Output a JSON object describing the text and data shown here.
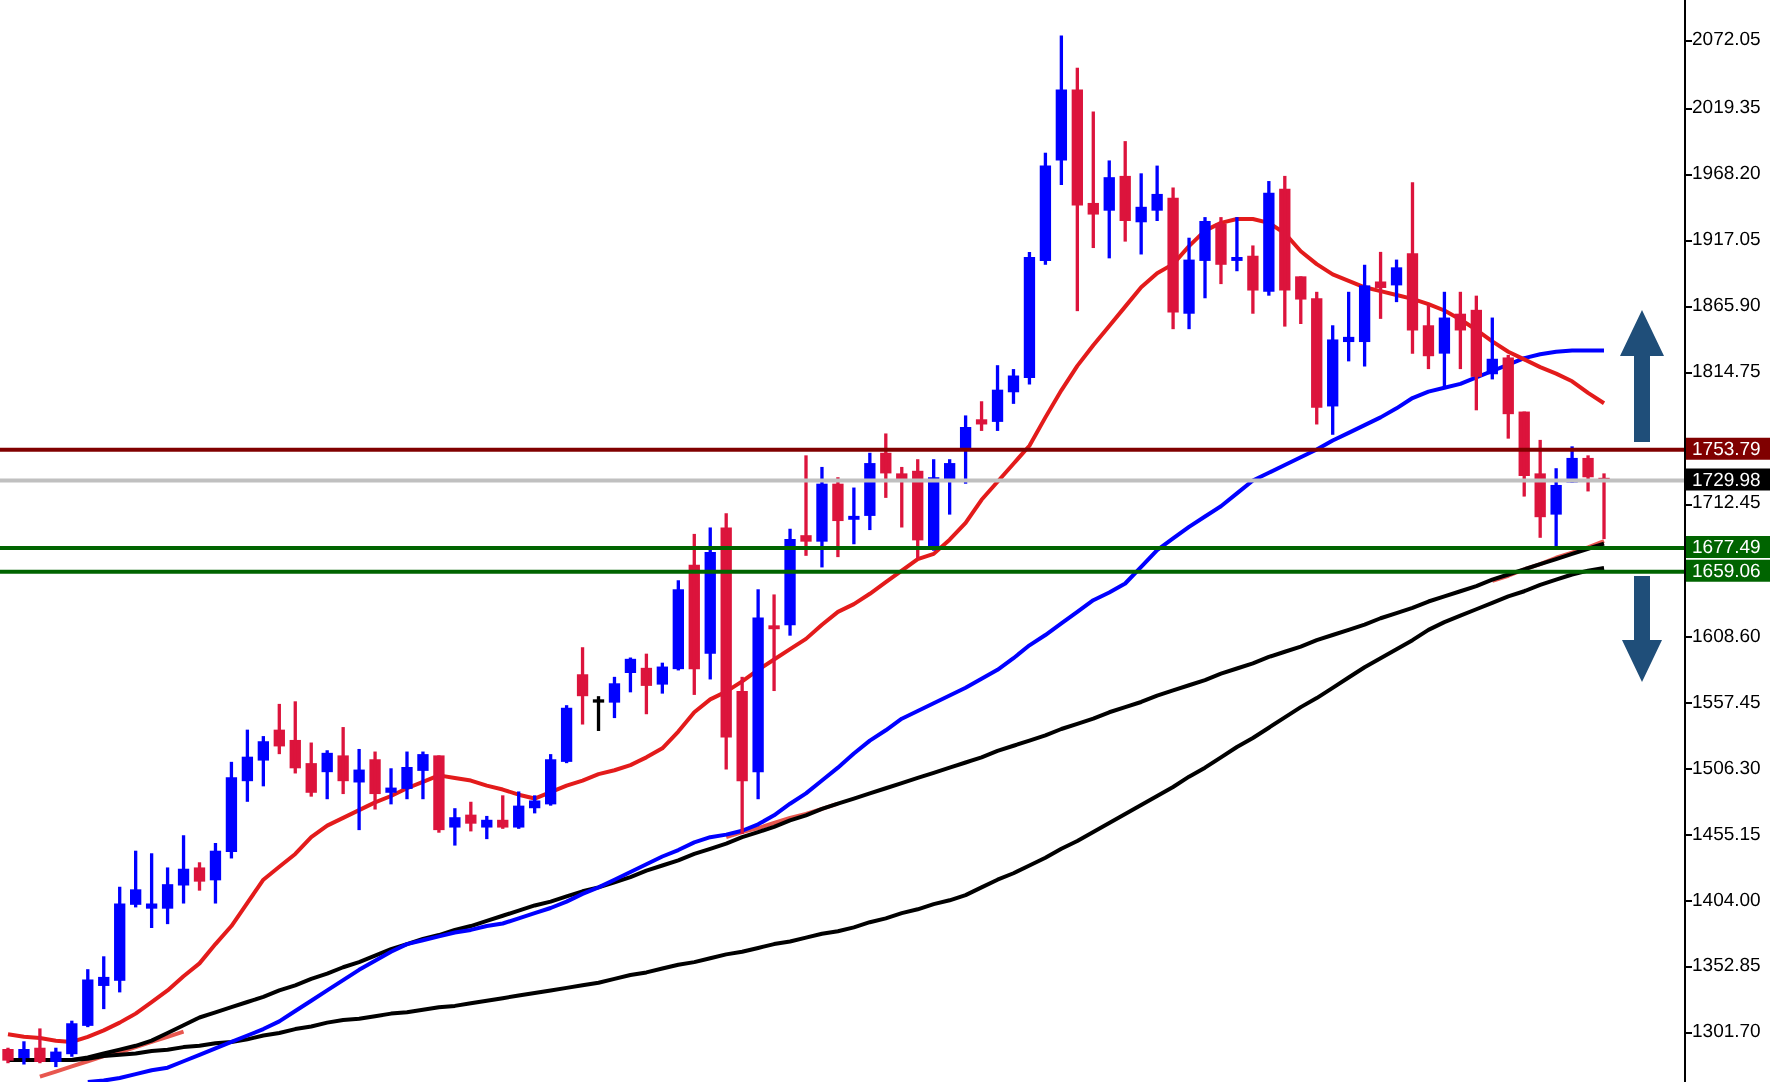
{
  "chart_data": {
    "type": "candlestick",
    "categories": [
      null,
      null,
      null,
      null,
      null,
      null,
      null,
      null,
      null,
      null,
      null,
      null,
      null,
      null,
      null,
      null,
      null,
      null,
      null,
      null,
      null,
      null,
      null,
      null,
      null,
      null,
      null,
      null,
      null,
      null,
      null,
      null,
      null,
      null,
      null,
      null,
      null,
      null,
      null,
      null,
      null,
      null,
      null,
      null,
      null,
      null,
      null,
      null,
      null,
      null,
      null,
      null,
      null,
      null,
      null,
      null,
      null,
      null,
      null,
      null,
      null,
      null,
      null,
      null,
      null,
      null,
      null,
      null,
      null,
      null,
      null,
      null,
      null,
      null,
      null,
      null,
      null,
      null,
      null,
      null,
      null,
      null,
      null,
      null,
      null,
      null,
      null,
      null,
      null,
      null,
      null,
      null,
      null,
      null,
      null,
      null,
      null,
      null,
      null,
      null,
      null
    ],
    "ohlc": [
      [
        1288,
        1289,
        1278,
        1280
      ],
      [
        1282,
        1294,
        1277,
        1288
      ],
      [
        1289,
        1304,
        1278,
        1279
      ],
      [
        1279,
        1289,
        1275,
        1286
      ],
      [
        1285,
        1310,
        1283,
        1308
      ],
      [
        1307,
        1350,
        1306,
        1342
      ],
      [
        1338,
        1360,
        1320,
        1344
      ],
      [
        1342,
        1414,
        1333,
        1401
      ],
      [
        1401,
        1442,
        1399,
        1412
      ],
      [
        1398,
        1440,
        1383,
        1401
      ],
      [
        1398,
        1429,
        1386,
        1416
      ],
      [
        1416,
        1454,
        1402,
        1428
      ],
      [
        1429,
        1433,
        1412,
        1419
      ],
      [
        1420,
        1448,
        1402,
        1442
      ],
      [
        1442,
        1511,
        1437,
        1499
      ],
      [
        1497,
        1536,
        1481,
        1515
      ],
      [
        1513,
        1531,
        1493,
        1527
      ],
      [
        1536,
        1556,
        1518,
        1524
      ],
      [
        1528,
        1558,
        1503,
        1507
      ],
      [
        1510,
        1526,
        1485,
        1488
      ],
      [
        1504,
        1520,
        1483,
        1518
      ],
      [
        1516,
        1538,
        1487,
        1497
      ],
      [
        1496,
        1521,
        1459,
        1505
      ],
      [
        1513,
        1519,
        1475,
        1487
      ],
      [
        1488,
        1506,
        1479,
        1491
      ],
      [
        1491,
        1519,
        1483,
        1507
      ],
      [
        1505,
        1519,
        1483,
        1517
      ],
      [
        1516,
        1516,
        1457,
        1459
      ],
      [
        1461,
        1475,
        1447,
        1468
      ],
      [
        1470,
        1480,
        1458,
        1464
      ],
      [
        1461,
        1469,
        1452,
        1466
      ],
      [
        1466,
        1485,
        1460,
        1461
      ],
      [
        1461,
        1488,
        1460,
        1477
      ],
      [
        1476,
        1485,
        1472,
        1481
      ],
      [
        1479,
        1517,
        1478,
        1513
      ],
      [
        1512,
        1555,
        1511,
        1553
      ],
      [
        1579,
        1600,
        1541,
        1563
      ],
      [
        1559,
        1562,
        1536,
        1558
      ],
      [
        1558,
        1577,
        1546,
        1572
      ],
      [
        1581,
        1592,
        1566,
        1591
      ],
      [
        1584,
        1595,
        1549,
        1571
      ],
      [
        1572,
        1588,
        1565,
        1585
      ],
      [
        1584,
        1652,
        1583,
        1645
      ],
      [
        1664,
        1688,
        1564,
        1584
      ],
      [
        1596,
        1693,
        1576,
        1674
      ],
      [
        1693,
        1704,
        1506,
        1531
      ],
      [
        1566,
        1577,
        1456,
        1497
      ],
      [
        1504,
        1645,
        1483,
        1623
      ],
      [
        1617,
        1641,
        1567,
        1615
      ],
      [
        1618,
        1692,
        1610,
        1684
      ],
      [
        1687,
        1749,
        1672,
        1683
      ],
      [
        1683,
        1740,
        1663,
        1727
      ],
      [
        1727,
        1732,
        1671,
        1699
      ],
      [
        1700,
        1724,
        1681,
        1702
      ],
      [
        1703,
        1751,
        1692,
        1743
      ],
      [
        1751,
        1766,
        1717,
        1736
      ],
      [
        1735,
        1740,
        1694,
        1731
      ],
      [
        1737,
        1746,
        1670,
        1684
      ],
      [
        1679,
        1746,
        1676,
        1732
      ],
      [
        1730,
        1746,
        1704,
        1743
      ],
      [
        1755,
        1780,
        1728,
        1771
      ],
      [
        1777,
        1791,
        1769,
        1774
      ],
      [
        1776,
        1819,
        1769,
        1800
      ],
      [
        1799,
        1816,
        1790,
        1811
      ],
      [
        1810,
        1907,
        1805,
        1903
      ],
      [
        1901,
        1984,
        1898,
        1974
      ],
      [
        1979,
        2075,
        1960,
        2033
      ],
      [
        2033,
        2050,
        1862,
        1944
      ],
      [
        1945,
        2016,
        1911,
        1937
      ],
      [
        1940,
        1978,
        1903,
        1965
      ],
      [
        1966,
        1993,
        1916,
        1932
      ],
      [
        1931,
        1968,
        1906,
        1942
      ],
      [
        1940,
        1974,
        1932,
        1952
      ],
      [
        1949,
        1957,
        1848,
        1861
      ],
      [
        1860,
        1918,
        1848,
        1901
      ],
      [
        1901,
        1934,
        1872,
        1931
      ],
      [
        1929,
        1934,
        1883,
        1898
      ],
      [
        1901,
        1934,
        1893,
        1903
      ],
      [
        1904,
        1912,
        1860,
        1878
      ],
      [
        1877,
        1962,
        1874,
        1953
      ],
      [
        1956,
        1966,
        1850,
        1878
      ],
      [
        1888,
        1888,
        1852,
        1871
      ],
      [
        1871,
        1876,
        1774,
        1787
      ],
      [
        1788,
        1850,
        1766,
        1839
      ],
      [
        1838,
        1876,
        1823,
        1841
      ],
      [
        1838,
        1897,
        1819,
        1881
      ],
      [
        1884,
        1907,
        1856,
        1880
      ],
      [
        1882,
        1901,
        1869,
        1895
      ],
      [
        1906,
        1961,
        1829,
        1847
      ],
      [
        1850,
        1866,
        1817,
        1827
      ],
      [
        1829,
        1876,
        1802,
        1856
      ],
      [
        1859,
        1876,
        1817,
        1847
      ],
      [
        1862,
        1873,
        1785,
        1811
      ],
      [
        1813,
        1856,
        1809,
        1824
      ],
      [
        1825,
        1827,
        1763,
        1782
      ],
      [
        1783,
        1783,
        1718,
        1734
      ],
      [
        1735,
        1761,
        1686,
        1702
      ],
      [
        1704,
        1739,
        1677,
        1726
      ],
      [
        1729,
        1756,
        1729,
        1747
      ],
      [
        1747,
        1749,
        1722,
        1733
      ],
      [
        1731,
        1735,
        1685,
        1730
      ]
    ],
    "colors": [
      "#dc143c",
      "#0000ff",
      "#dc143c",
      "#0000ff",
      "#0000ff",
      "#0000ff",
      "#0000ff",
      "#0000ff",
      "#0000ff",
      "#0000ff",
      "#0000ff",
      "#0000ff",
      "#dc143c",
      "#0000ff",
      "#0000ff",
      "#0000ff",
      "#0000ff",
      "#dc143c",
      "#dc143c",
      "#dc143c",
      "#0000ff",
      "#dc143c",
      "#0000ff",
      "#dc143c",
      "#0000ff",
      "#0000ff",
      "#0000ff",
      "#dc143c",
      "#0000ff",
      "#dc143c",
      "#0000ff",
      "#dc143c",
      "#0000ff",
      "#0000ff",
      "#0000ff",
      "#0000ff",
      "#dc143c",
      "#000000",
      "#0000ff",
      "#0000ff",
      "#dc143c",
      "#0000ff",
      "#0000ff",
      "#dc143c",
      "#0000ff",
      "#dc143c",
      "#dc143c",
      "#0000ff",
      "#dc143c",
      "#0000ff",
      "#dc143c",
      "#0000ff",
      "#dc143c",
      "#0000ff",
      "#0000ff",
      "#dc143c",
      "#dc143c",
      "#dc143c",
      "#0000ff",
      "#0000ff",
      "#0000ff",
      "#dc143c",
      "#0000ff",
      "#0000ff",
      "#0000ff",
      "#0000ff",
      "#0000ff",
      "#dc143c",
      "#dc143c",
      "#0000ff",
      "#dc143c",
      "#0000ff",
      "#0000ff",
      "#dc143c",
      "#0000ff",
      "#0000ff",
      "#dc143c",
      "#0000ff",
      "#dc143c",
      "#0000ff",
      "#dc143c",
      "#dc143c",
      "#dc143c",
      "#0000ff",
      "#0000ff",
      "#0000ff",
      "#dc143c",
      "#0000ff",
      "#dc143c",
      "#dc143c",
      "#0000ff",
      "#dc143c",
      "#dc143c",
      "#0000ff",
      "#dc143c",
      "#dc143c",
      "#dc143c",
      "#0000ff",
      "#0000ff",
      "#dc143c",
      "#dc143c"
    ],
    "series": [
      {
        "type": "line",
        "color": "#e31b1b",
        "values": [
          1300,
          1298,
          1297,
          1295,
          1294,
          1298,
          1303,
          1309,
          1316,
          1325,
          1334,
          1345,
          1355,
          1370,
          1384,
          1402,
          1420,
          1430,
          1440,
          1453,
          1462,
          1468,
          1474,
          1480,
          1485,
          1491,
          1496,
          1501,
          1499,
          1497,
          1493,
          1490,
          1486,
          1483,
          1488,
          1493,
          1497,
          1502,
          1505,
          1509,
          1515,
          1522,
          1535,
          1550,
          1560,
          1566,
          1574,
          1583,
          1591,
          1599,
          1607,
          1618,
          1628,
          1634,
          1642,
          1651,
          1660,
          1669,
          1673,
          1684,
          1697,
          1715,
          1729,
          1743,
          1757,
          1779,
          1800,
          1819,
          1835,
          1850,
          1865,
          1880,
          1891,
          1898,
          1912,
          1924,
          1930,
          1933,
          1933,
          1930,
          1922,
          1908,
          1898,
          1890,
          1885,
          1880,
          1877,
          1874,
          1871,
          1867,
          1862,
          1855,
          1847,
          1838,
          1830,
          1824,
          1818,
          1813,
          1807,
          1798,
          1790
        ]
      },
      {
        "type": "line",
        "color": "#0000ff",
        "values": [
          null,
          null,
          null,
          null,
          null,
          1263,
          1264,
          1266,
          1269,
          1272,
          1274,
          1279,
          1284,
          1289,
          1294,
          1299,
          1304,
          1310,
          1318,
          1326,
          1334,
          1342,
          1350,
          1357,
          1364,
          1370,
          1373,
          1376,
          1379,
          1381,
          1384,
          1386,
          1390,
          1394,
          1398,
          1403,
          1409,
          1414,
          1420,
          1426,
          1432,
          1438,
          1443,
          1449,
          1453,
          1455,
          1458,
          1463,
          1470,
          1479,
          1487,
          1497,
          1507,
          1518,
          1528,
          1536,
          1545,
          1551,
          1557,
          1563,
          1569,
          1576,
          1583,
          1592,
          1602,
          1610,
          1619,
          1628,
          1637,
          1643,
          1650,
          1663,
          1676,
          1685,
          1694,
          1702,
          1710,
          1720,
          1730,
          1736,
          1742,
          1748,
          1754,
          1761,
          1767,
          1773,
          1779,
          1786,
          1794,
          1799,
          1802,
          1805,
          1810,
          1815,
          1820,
          1825,
          1828,
          1830,
          1831,
          1831,
          1831
        ]
      },
      {
        "type": "line",
        "color": "#000000",
        "values": [
          1280,
          1280,
          1280,
          1280,
          1280,
          1282,
          1285,
          1288,
          1291,
          1295,
          1301,
          1307,
          1313,
          1317,
          1321,
          1325,
          1329,
          1334,
          1338,
          1343,
          1347,
          1352,
          1356,
          1361,
          1366,
          1370,
          1374,
          1377,
          1381,
          1384,
          1388,
          1392,
          1396,
          1400,
          1403,
          1407,
          1411,
          1414,
          1418,
          1422,
          1427,
          1431,
          1435,
          1440,
          1444,
          1448,
          1453,
          1457,
          1461,
          1466,
          1470,
          1475,
          1479,
          1483,
          1487,
          1491,
          1495,
          1499,
          1503,
          1507,
          1511,
          1515,
          1520,
          1524,
          1528,
          1532,
          1537,
          1541,
          1545,
          1550,
          1554,
          1558,
          1563,
          1567,
          1571,
          1575,
          1580,
          1584,
          1588,
          1593,
          1597,
          1601,
          1606,
          1610,
          1614,
          1618,
          1623,
          1627,
          1631,
          1636,
          1640,
          1644,
          1648,
          1653,
          1657,
          1661,
          1665,
          1669,
          1673,
          1677,
          1681
        ]
      },
      {
        "type": "line",
        "color": "#000000",
        "values": [
          1280,
          1280,
          1280,
          1280,
          1280,
          1281,
          1283,
          1284,
          1285,
          1287,
          1288,
          1290,
          1291,
          1293,
          1294,
          1296,
          1299,
          1301,
          1304,
          1306,
          1309,
          1311,
          1312,
          1314,
          1316,
          1317,
          1319,
          1321,
          1322,
          1324,
          1326,
          1328,
          1330,
          1332,
          1334,
          1336,
          1338,
          1340,
          1343,
          1346,
          1348,
          1351,
          1354,
          1356,
          1359,
          1362,
          1364,
          1367,
          1370,
          1372,
          1375,
          1378,
          1380,
          1383,
          1387,
          1390,
          1394,
          1397,
          1401,
          1404,
          1408,
          1414,
          1420,
          1425,
          1431,
          1437,
          1444,
          1450,
          1457,
          1464,
          1471,
          1478,
          1485,
          1492,
          1500,
          1507,
          1515,
          1523,
          1530,
          1538,
          1546,
          1554,
          1561,
          1569,
          1577,
          1585,
          1592,
          1599,
          1606,
          1614,
          1620,
          1625,
          1630,
          1635,
          1640,
          1644,
          1649,
          1653,
          1657,
          1660,
          1662
        ]
      },
      {
        "type": "line",
        "color": "#e8574f",
        "values": [
          null,
          null,
          1267,
          1271,
          1275,
          1279,
          1283,
          1286,
          1290,
          1294,
          1298,
          1302,
          null,
          null,
          null,
          null,
          null,
          null,
          null,
          null,
          null,
          null,
          null,
          null,
          null,
          null,
          null,
          null,
          null,
          null,
          null,
          null,
          null,
          null,
          null,
          null,
          null,
          null,
          null,
          null,
          null,
          null,
          null,
          null,
          null,
          null,
          null,
          null,
          null,
          null,
          null,
          null,
          null,
          null,
          null,
          null,
          null,
          null,
          null,
          null,
          null,
          null,
          null,
          null,
          null,
          null,
          null,
          null,
          null,
          null,
          null,
          null,
          null,
          null,
          null,
          null,
          null,
          null,
          null,
          null,
          null,
          null,
          null,
          null,
          null,
          null,
          null,
          null,
          null,
          null,
          null,
          null,
          null,
          null,
          null,
          null,
          null,
          null,
          null,
          null,
          null
        ]
      },
      {
        "type": "line",
        "color": "#e8574f",
        "values": [
          null,
          null,
          null,
          null,
          null,
          null,
          null,
          null,
          null,
          null,
          null,
          null,
          null,
          null,
          null,
          null,
          null,
          null,
          null,
          null,
          null,
          null,
          null,
          null,
          null,
          null,
          null,
          null,
          null,
          null,
          null,
          null,
          null,
          null,
          null,
          null,
          null,
          null,
          null,
          null,
          null,
          null,
          null,
          null,
          null,
          1453,
          1457,
          1460,
          1464,
          1468,
          1471,
          1475,
          1479,
          null,
          null,
          null,
          null,
          null,
          null,
          null,
          null,
          null,
          null,
          null,
          null,
          null,
          null,
          null,
          null,
          null,
          null,
          null,
          null,
          null,
          null,
          null,
          null,
          null,
          null,
          null,
          null,
          null,
          null,
          null,
          null,
          null,
          null,
          null,
          null,
          null,
          null,
          null,
          null,
          null,
          null,
          null,
          null,
          null,
          null,
          null,
          null
        ]
      },
      {
        "type": "line",
        "color": "#e8574f",
        "values": [
          null,
          null,
          null,
          null,
          null,
          null,
          null,
          null,
          null,
          null,
          null,
          null,
          null,
          null,
          null,
          null,
          null,
          null,
          null,
          null,
          null,
          null,
          null,
          null,
          null,
          null,
          null,
          null,
          null,
          null,
          null,
          null,
          null,
          null,
          null,
          null,
          null,
          null,
          null,
          null,
          null,
          null,
          null,
          null,
          null,
          null,
          null,
          null,
          null,
          null,
          null,
          null,
          null,
          null,
          null,
          null,
          null,
          null,
          null,
          null,
          null,
          null,
          null,
          null,
          null,
          null,
          null,
          null,
          null,
          null,
          null,
          null,
          null,
          null,
          null,
          null,
          null,
          null,
          null,
          null,
          null,
          null,
          null,
          null,
          null,
          null,
          null,
          null,
          null,
          null,
          null,
          null,
          null,
          1652,
          1656,
          1661,
          1665,
          1670,
          1674,
          1678,
          1683
        ]
      }
    ],
    "ylim": [
      1262.9,
      2103.1
    ],
    "yticks": [
      2072.05,
      2019.35,
      {
        "value": 1968.2,
        "label": "1968.20"
      },
      1917.05,
      {
        "value": 1865.9,
        "label": "1865.90"
      },
      1814.75,
      1712.45,
      {
        "value": 1608.6,
        "label": "1608.60"
      },
      1557.45,
      {
        "value": 1506.3,
        "label": "1506.30"
      },
      1455.15,
      {
        "value": 1404,
        "label": "1404.00"
      },
      1352.85,
      {
        "value": 1301.7,
        "label": "1301.70"
      }
    ],
    "ref_lines": [
      {
        "axis": "y",
        "value": 1753.79,
        "label": "1753.79",
        "color": "#800000"
      },
      {
        "axis": "y",
        "value": 1729.98,
        "label": "1729.98",
        "color": "#c0c0c0"
      },
      {
        "axis": "y",
        "value": 1677.49,
        "label": "1677.49",
        "color": "#006400"
      },
      {
        "axis": "y",
        "value": 1659.06,
        "label": "1659.06",
        "color": "#006400"
      }
    ],
    "tick_labels": "y",
    "grid": false,
    "legend": false,
    "marker": "none"
  }
}
